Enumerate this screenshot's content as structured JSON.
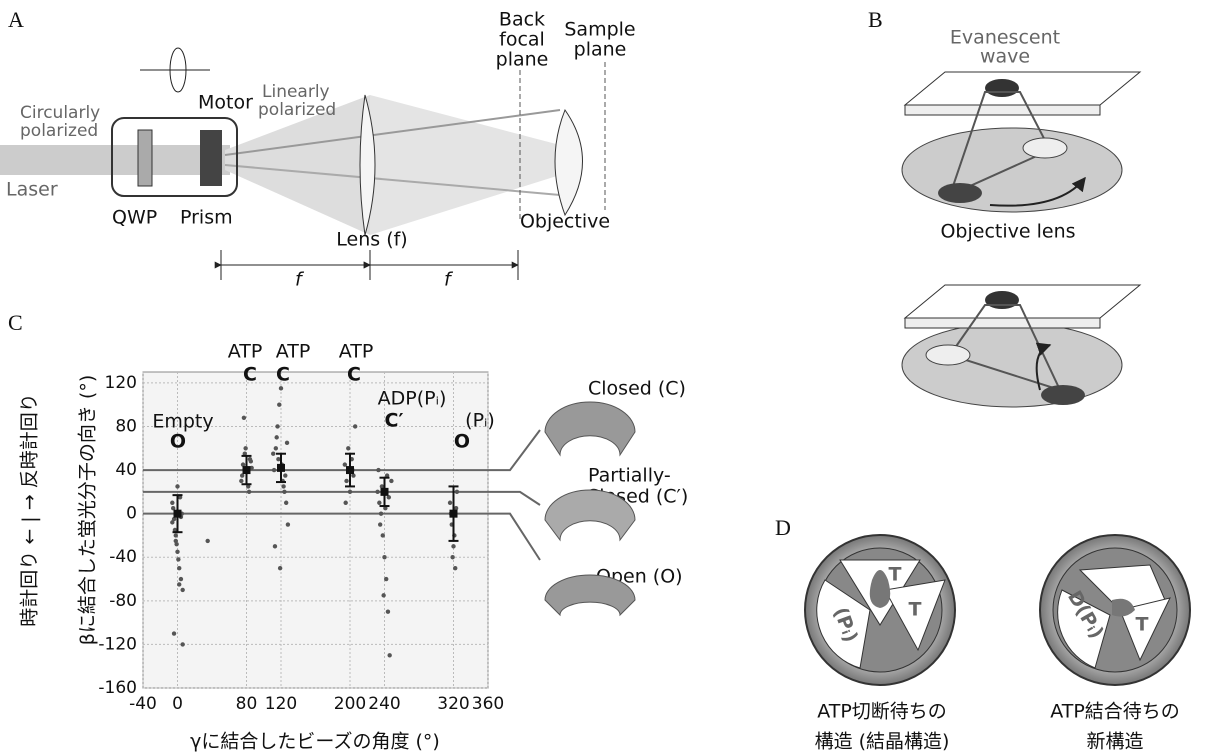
{
  "panel_a": {
    "label": "A",
    "back_focal_plane": [
      "Back",
      "focal",
      "plane"
    ],
    "sample_plane": [
      "Sample",
      "plane"
    ],
    "motor": "Motor",
    "linearly_polarized": [
      "Linearly",
      "polarized"
    ],
    "circularly_polarized": [
      "Circularly",
      "polarized"
    ],
    "laser": "Laser",
    "qwp": "QWP",
    "prism": "Prism",
    "lens": "Lens (f)",
    "objective": "Objective",
    "focal_length": [
      "f",
      "f"
    ]
  },
  "panel_b": {
    "label": "B",
    "evanescent_wave": [
      "Evanescent",
      "wave"
    ],
    "objective_lens": "Objective lens"
  },
  "panel_c": {
    "label": "C",
    "chart_data": {
      "type": "scatter",
      "x_label": "γに結合したビーズの角度 (°)",
      "y_label": "βに結合した蛍光分子の向き (°)",
      "direction_label": "時計回り ← | → 反時計回り",
      "xlim": [
        -40,
        360
      ],
      "xticks": [
        -40,
        0,
        80,
        120,
        200,
        240,
        320,
        360
      ],
      "ylim": [
        -160,
        130
      ],
      "yticks": [
        -160,
        -120,
        -80,
        -40,
        0,
        40,
        80,
        120
      ],
      "grid": true,
      "color": "#555555",
      "scatter": {
        "x": [
          -6,
          -4,
          -2,
          0,
          2,
          4,
          6,
          -5,
          -3,
          -1,
          1,
          3,
          5,
          -6,
          -2,
          2,
          6,
          -4,
          0,
          4,
          74,
          76,
          78,
          80,
          82,
          84,
          86,
          75,
          79,
          83,
          77,
          85,
          112,
          114,
          116,
          118,
          120,
          122,
          124,
          126,
          128,
          113,
          117,
          121,
          125,
          115,
          119,
          123,
          127,
          111,
          194,
          196,
          198,
          200,
          202,
          204,
          206,
          195,
          203,
          232,
          234,
          236,
          238,
          240,
          242,
          244,
          246,
          248,
          233,
          237,
          241,
          245,
          235,
          239,
          243,
          316,
          318,
          320,
          322,
          324,
          317,
          321,
          323,
          319,
          35
        ],
        "y": [
          10,
          -5,
          -20,
          -35,
          -50,
          -60,
          -70,
          5,
          -15,
          -28,
          -42,
          15,
          0,
          -8,
          -25,
          -65,
          -120,
          -110,
          25,
          -3,
          30,
          45,
          55,
          38,
          25,
          50,
          42,
          35,
          60,
          20,
          88,
          48,
          40,
          60,
          80,
          100,
          115,
          30,
          20,
          10,
          -10,
          -30,
          50,
          45,
          35,
          70,
          -50,
          25,
          65,
          55,
          45,
          30,
          60,
          20,
          50,
          35,
          80,
          10,
          40,
          20,
          10,
          0,
          -20,
          -40,
          -60,
          -90,
          -130,
          30,
          40,
          25,
          5,
          15,
          -10,
          -75,
          35,
          10,
          -10,
          -30,
          -50,
          20,
          0,
          -20,
          5,
          -40,
          -25
        ]
      },
      "summary": {
        "x": [
          0,
          80,
          120,
          200,
          240,
          320
        ],
        "y": [
          0,
          40,
          42,
          40,
          20,
          0
        ],
        "error": [
          17,
          13,
          13,
          15,
          13,
          25
        ]
      },
      "reference_lines": [
        40,
        20,
        0
      ],
      "annotations": [
        "ATP",
        "C",
        "ATP",
        "C",
        "ATP",
        "C",
        "Empty",
        "O",
        "ADP(Pᵢ)",
        "C′",
        "(Pᵢ)",
        "O"
      ],
      "states": {
        "closed": "Closed (C)",
        "partially_closed": [
          "Partially-",
          "Closed (C′)"
        ],
        "open": "Open (O)"
      }
    }
  },
  "panel_d": {
    "label": "D",
    "left_labels": [
      "T",
      "T",
      "(Pᵢ)"
    ],
    "right_labels": [
      "D(Pᵢ)",
      "T"
    ],
    "left_caption": [
      "ATP切断待ちの",
      "構造 (結晶構造)"
    ],
    "right_caption": [
      "ATP結合待ちの",
      "新構造"
    ]
  }
}
